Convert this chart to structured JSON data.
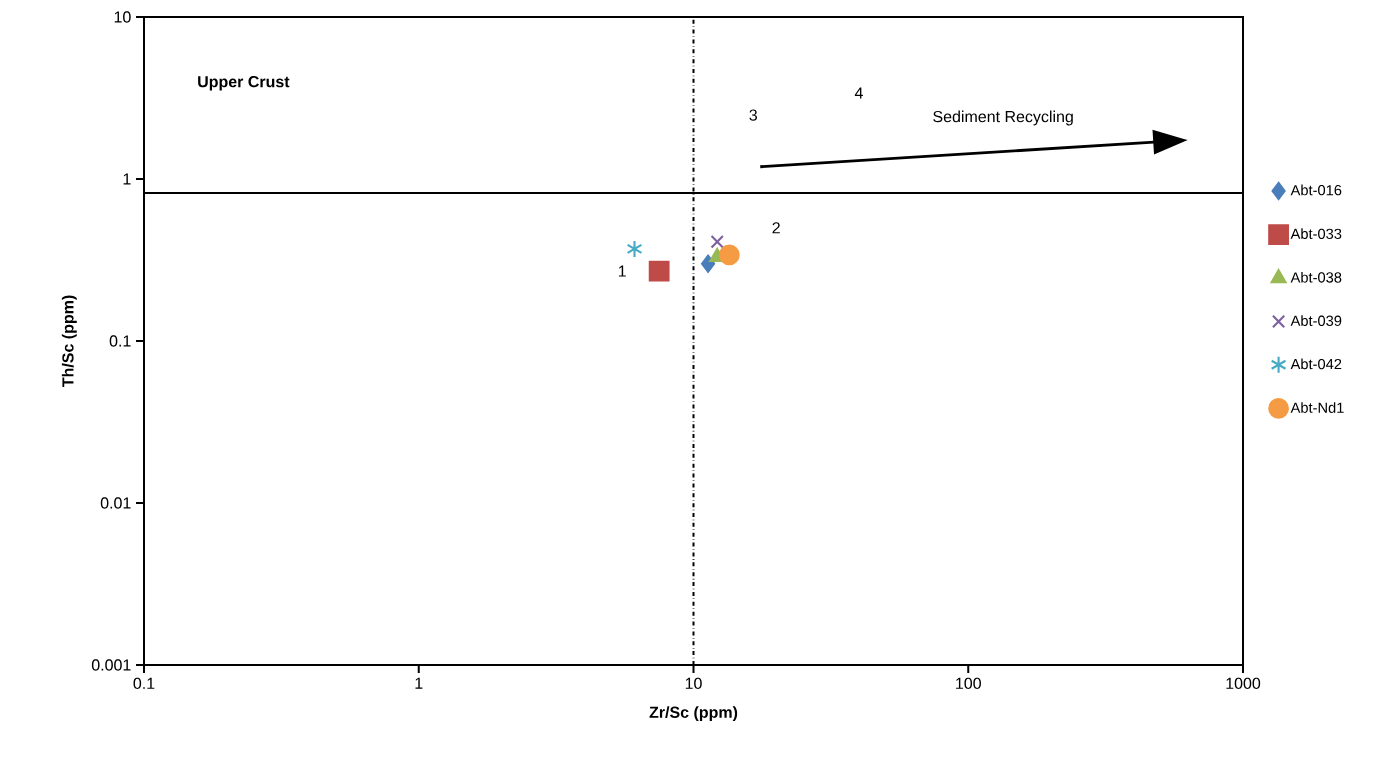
{
  "chart_data": {
    "type": "scatter",
    "xlabel": "Zr/Sc (ppm)",
    "ylabel": "Th/Sc (ppm)",
    "log": "xy",
    "grid": false,
    "legend": "right",
    "xlim": [
      0.1,
      1000
    ],
    "ylim": [
      0.001,
      10
    ],
    "xticks": [
      0.1,
      1,
      10,
      100,
      1000
    ],
    "yticks": [
      0.001,
      0.01,
      0.1,
      1,
      10
    ],
    "series": [
      {
        "name": "Abt-016",
        "color": "#4a7ebb",
        "marker": "diamond",
        "x": [
          11.3
        ],
        "values": [
          0.3
        ]
      },
      {
        "name": "Abt-033",
        "color": "#be4b48",
        "marker": "square",
        "x": [
          7.5
        ],
        "values": [
          0.27
        ]
      },
      {
        "name": "Abt-038",
        "color": "#98b954",
        "marker": "triangle",
        "x": [
          12.2
        ],
        "values": [
          0.33
        ]
      },
      {
        "name": "Abt-039",
        "color": "#7d60a0",
        "marker": "cross",
        "x": [
          12.2
        ],
        "values": [
          0.41
        ]
      },
      {
        "name": "Abt-042",
        "color": "#46aac5",
        "marker": "cross",
        "x": [
          6.1
        ],
        "values": [
          0.37
        ]
      },
      {
        "name": "Abt-Nd1",
        "color": "#f49b43",
        "marker": "circle",
        "x": [
          13.5
        ],
        "values": [
          0.34
        ]
      }
    ],
    "ref_lines": [
      {
        "axis": "y",
        "value": 0.82,
        "color": "#000000",
        "line_style": "solid"
      },
      {
        "axis": "x",
        "value": 10,
        "color": "#000000",
        "line_style": "dashdot"
      }
    ],
    "annotations": [
      "Upper Crust",
      "Sediment Recycling",
      "1",
      "2",
      "3",
      "4"
    ]
  }
}
